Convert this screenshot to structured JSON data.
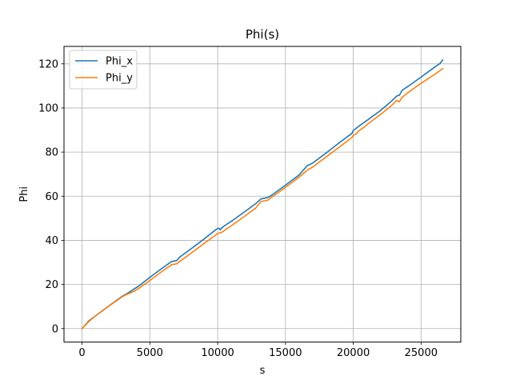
{
  "chart_data": {
    "type": "line",
    "title": "Phi(s)",
    "xlabel": "s",
    "ylabel": "Phi",
    "xlim": [
      -1330,
      27930
    ],
    "ylim": [
      -6.1,
      127.9
    ],
    "xticks": [
      0,
      5000,
      10000,
      15000,
      20000,
      25000
    ],
    "yticks": [
      0,
      20,
      40,
      60,
      80,
      100,
      120
    ],
    "grid": true,
    "legend_position": "upper-left",
    "series": [
      {
        "name": "Phi_x",
        "color": "#1f77b4",
        "x": [
          0,
          500,
          1000,
          2000,
          3000,
          3300,
          3800,
          4200,
          5000,
          6000,
          6600,
          7000,
          7200,
          8000,
          9000,
          9900,
          10000,
          10100,
          10200,
          10300,
          10500,
          11000,
          12000,
          12800,
          13200,
          13700,
          14000,
          15000,
          16000,
          16600,
          17000,
          18000,
          19000,
          19900,
          20000,
          20100,
          20300,
          20600,
          21000,
          22000,
          22800,
          23200,
          23400,
          23600,
          24000,
          25000,
          26000,
          26400,
          26600
        ],
        "y": [
          0,
          3.5,
          5.8,
          10.4,
          14.8,
          15.8,
          17.8,
          19.4,
          23.2,
          27.8,
          30.4,
          30.9,
          32.4,
          36,
          40.6,
          45,
          45.3,
          45.5,
          44.8,
          45.6,
          46.6,
          48.6,
          53,
          56.6,
          58.8,
          59.4,
          60.5,
          65,
          69.6,
          73.8,
          75,
          79.6,
          84.4,
          88.5,
          89.8,
          90.2,
          91.2,
          92.6,
          94.3,
          98.8,
          103,
          105.4,
          105.8,
          108,
          109.6,
          114,
          118.5,
          120.2,
          121.8
        ]
      },
      {
        "name": "Phi_y",
        "color": "#ff7f0e",
        "x": [
          0,
          500,
          1000,
          2000,
          3000,
          3300,
          3800,
          4200,
          5000,
          6000,
          6600,
          7000,
          7200,
          8000,
          9000,
          9900,
          10000,
          10200,
          10400,
          10600,
          11000,
          12000,
          12800,
          13200,
          13700,
          14000,
          15000,
          16000,
          16600,
          17000,
          18000,
          19000,
          19900,
          20000,
          20200,
          20400,
          20800,
          21000,
          22000,
          22800,
          23200,
          23400,
          23600,
          24000,
          25000,
          26000,
          26600
        ],
        "y": [
          0,
          3.2,
          5.8,
          10.3,
          14.6,
          15.5,
          16.8,
          18.3,
          21.8,
          26.4,
          29,
          29.4,
          30.4,
          34,
          38.6,
          42.6,
          43.2,
          43.4,
          44,
          45,
          46.6,
          51,
          54.6,
          57.6,
          58.2,
          59.6,
          64,
          68.6,
          71.8,
          73.2,
          77.8,
          82.4,
          86.6,
          87.6,
          88.2,
          89.6,
          91.3,
          92.4,
          97,
          101,
          103.4,
          102.8,
          104.8,
          106.8,
          111.2,
          115.2,
          117.8
        ]
      }
    ]
  }
}
